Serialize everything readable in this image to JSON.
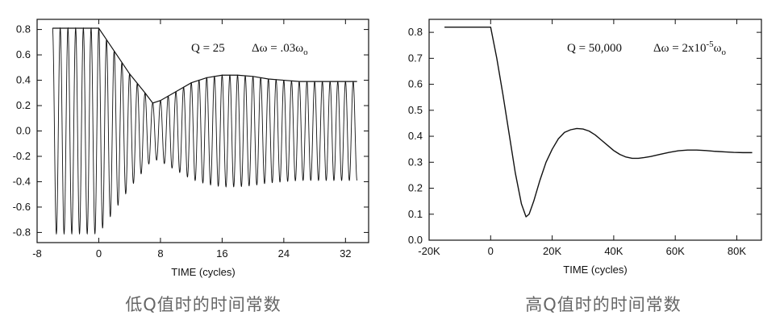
{
  "chart_data": [
    {
      "type": "line",
      "annotation_q": "Q = 25",
      "annotation_dw": "Δω = .03ω",
      "annotation_dw_sub": "o",
      "xlabel": "TIME (cycles)",
      "xlim": [
        -8,
        35
      ],
      "ylim": [
        -0.88,
        0.88
      ],
      "xticks": [
        "-8",
        "0",
        "8",
        "16",
        "24",
        "32"
      ],
      "xtick_values": [
        -8,
        0,
        8,
        16,
        24,
        32
      ],
      "yticks": [
        "0.8",
        "0.6",
        "0.4",
        "0.2",
        "0.0",
        "-0.2",
        "-0.4",
        "-0.6",
        "-0.8"
      ],
      "ytick_values": [
        0.8,
        0.6,
        0.4,
        0.2,
        0.0,
        -0.2,
        -0.4,
        -0.6,
        -0.8
      ],
      "series": [
        {
          "kind": "oscillation",
          "x_start": -6,
          "x_end": 33.5,
          "envelope_x": [
            -6,
            0,
            2,
            4,
            6,
            7,
            8,
            10,
            12,
            14,
            16,
            18,
            20,
            22,
            24,
            26,
            28,
            30,
            33.5
          ],
          "envelope_y": [
            0.81,
            0.81,
            0.63,
            0.45,
            0.3,
            0.22,
            0.24,
            0.31,
            0.38,
            0.42,
            0.44,
            0.44,
            0.43,
            0.41,
            0.4,
            0.39,
            0.39,
            0.39,
            0.39
          ]
        }
      ],
      "caption": "低Q值时的时间常数"
    },
    {
      "type": "line",
      "annotation_q": "Q = 50,000",
      "annotation_dw": "Δω = 2x10",
      "annotation_dw_sup": "-5",
      "annotation_dw_tail": "ω",
      "annotation_dw_sub": "o",
      "xlabel": "TIME (cycles)",
      "xlim": [
        -20000,
        88000
      ],
      "ylim": [
        0.0,
        0.85
      ],
      "xticks": [
        "-20K",
        "0",
        "20K",
        "40K",
        "60K",
        "80K"
      ],
      "xtick_values": [
        -20000,
        0,
        20000,
        40000,
        60000,
        80000
      ],
      "yticks": [
        "0.8",
        "0.7",
        "0.6",
        "0.5",
        "0.4",
        "0.3",
        "0.2",
        "0.1",
        "0.0"
      ],
      "ytick_values": [
        0.8,
        0.7,
        0.6,
        0.5,
        0.4,
        0.3,
        0.2,
        0.1,
        0.0
      ],
      "series": [
        {
          "x": [
            -15000,
            0,
            2000,
            4000,
            6000,
            8000,
            10000,
            11500,
            12500,
            14000,
            16000,
            18000,
            20000,
            22000,
            24000,
            26000,
            28000,
            30000,
            32000,
            34000,
            36000,
            38000,
            40000,
            42000,
            44000,
            46000,
            48000,
            50000,
            52000,
            55000,
            58000,
            61000,
            64000,
            67000,
            70000,
            73000,
            76000,
            79000,
            82000,
            85000
          ],
          "y": [
            0.82,
            0.82,
            0.7,
            0.56,
            0.41,
            0.26,
            0.14,
            0.09,
            0.1,
            0.15,
            0.23,
            0.3,
            0.35,
            0.39,
            0.415,
            0.425,
            0.43,
            0.428,
            0.42,
            0.405,
            0.385,
            0.365,
            0.345,
            0.33,
            0.32,
            0.315,
            0.315,
            0.318,
            0.322,
            0.33,
            0.338,
            0.344,
            0.347,
            0.347,
            0.345,
            0.342,
            0.34,
            0.338,
            0.337,
            0.337
          ]
        }
      ],
      "caption": "高Q值时的时间常数"
    }
  ]
}
